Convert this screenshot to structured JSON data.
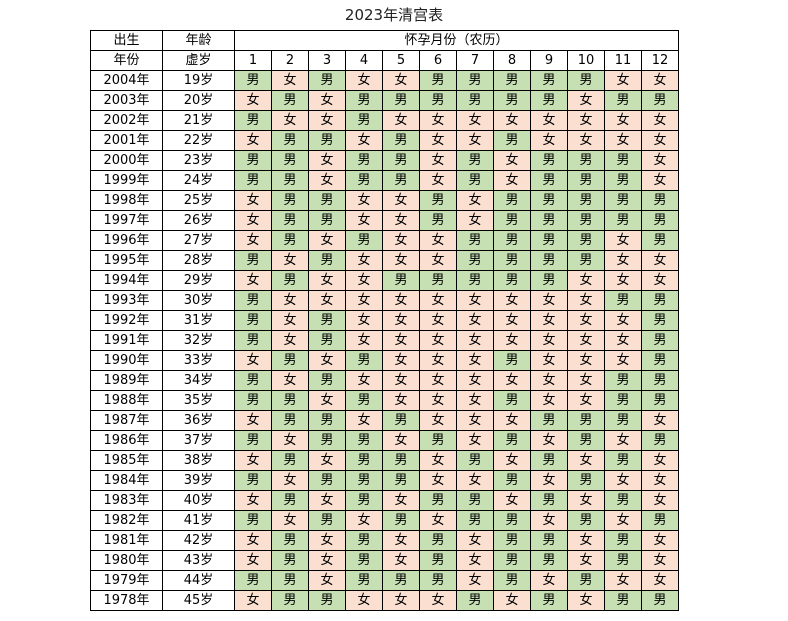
{
  "title": "2023年清宫表",
  "header": {
    "birth_top": "出生",
    "birth_bottom": "年份",
    "age_top": "年龄",
    "age_bottom": "虚岁",
    "month_group": "怀孕月份（农历）",
    "months": [
      "1",
      "2",
      "3",
      "4",
      "5",
      "6",
      "7",
      "8",
      "9",
      "10",
      "11",
      "12"
    ]
  },
  "colors": {
    "male": "#c6e0b4",
    "female": "#fbe0d2"
  },
  "rows": [
    {
      "year": "2004年",
      "age": "19岁",
      "cells": [
        "男",
        "女",
        "男",
        "女",
        "女",
        "男",
        "男",
        "男",
        "男",
        "男",
        "女",
        "女"
      ]
    },
    {
      "year": "2003年",
      "age": "20岁",
      "cells": [
        "女",
        "男",
        "女",
        "男",
        "男",
        "男",
        "男",
        "男",
        "男",
        "女",
        "男",
        "男"
      ]
    },
    {
      "year": "2002年",
      "age": "21岁",
      "cells": [
        "男",
        "女",
        "女",
        "男",
        "女",
        "女",
        "女",
        "女",
        "女",
        "女",
        "女",
        "女"
      ]
    },
    {
      "year": "2001年",
      "age": "22岁",
      "cells": [
        "女",
        "男",
        "男",
        "女",
        "男",
        "女",
        "女",
        "男",
        "女",
        "女",
        "女",
        "女"
      ]
    },
    {
      "year": "2000年",
      "age": "23岁",
      "cells": [
        "男",
        "男",
        "女",
        "男",
        "男",
        "女",
        "男",
        "女",
        "男",
        "男",
        "男",
        "女"
      ]
    },
    {
      "year": "1999年",
      "age": "24岁",
      "cells": [
        "男",
        "男",
        "女",
        "男",
        "男",
        "女",
        "男",
        "女",
        "男",
        "男",
        "男",
        "女"
      ]
    },
    {
      "year": "1998年",
      "age": "25岁",
      "cells": [
        "女",
        "男",
        "男",
        "女",
        "女",
        "男",
        "女",
        "男",
        "男",
        "男",
        "男",
        "男"
      ]
    },
    {
      "year": "1997年",
      "age": "26岁",
      "cells": [
        "女",
        "男",
        "男",
        "女",
        "女",
        "男",
        "女",
        "男",
        "男",
        "男",
        "男",
        "男"
      ]
    },
    {
      "year": "1996年",
      "age": "27岁",
      "cells": [
        "女",
        "男",
        "女",
        "男",
        "女",
        "女",
        "男",
        "男",
        "男",
        "男",
        "女",
        "男"
      ]
    },
    {
      "year": "1995年",
      "age": "28岁",
      "cells": [
        "男",
        "女",
        "男",
        "女",
        "女",
        "女",
        "男",
        "男",
        "男",
        "男",
        "女",
        "女"
      ]
    },
    {
      "year": "1994年",
      "age": "29岁",
      "cells": [
        "女",
        "男",
        "女",
        "女",
        "男",
        "男",
        "男",
        "男",
        "男",
        "女",
        "女",
        "女"
      ]
    },
    {
      "year": "1993年",
      "age": "30岁",
      "cells": [
        "男",
        "女",
        "女",
        "女",
        "女",
        "女",
        "女",
        "女",
        "女",
        "女",
        "男",
        "男"
      ]
    },
    {
      "year": "1992年",
      "age": "31岁",
      "cells": [
        "男",
        "女",
        "男",
        "女",
        "女",
        "女",
        "女",
        "女",
        "女",
        "女",
        "女",
        "男"
      ]
    },
    {
      "year": "1991年",
      "age": "32岁",
      "cells": [
        "男",
        "女",
        "男",
        "女",
        "女",
        "女",
        "女",
        "女",
        "女",
        "女",
        "女",
        "男"
      ]
    },
    {
      "year": "1990年",
      "age": "33岁",
      "cells": [
        "女",
        "男",
        "女",
        "男",
        "女",
        "女",
        "女",
        "男",
        "女",
        "女",
        "女",
        "男"
      ]
    },
    {
      "year": "1989年",
      "age": "34岁",
      "cells": [
        "男",
        "女",
        "男",
        "女",
        "女",
        "女",
        "女",
        "女",
        "女",
        "女",
        "男",
        "男"
      ]
    },
    {
      "year": "1988年",
      "age": "35岁",
      "cells": [
        "男",
        "男",
        "女",
        "男",
        "女",
        "女",
        "女",
        "男",
        "女",
        "女",
        "男",
        "男"
      ]
    },
    {
      "year": "1987年",
      "age": "36岁",
      "cells": [
        "女",
        "男",
        "男",
        "女",
        "男",
        "女",
        "女",
        "女",
        "男",
        "男",
        "男",
        "女"
      ]
    },
    {
      "year": "1986年",
      "age": "37岁",
      "cells": [
        "男",
        "女",
        "男",
        "男",
        "女",
        "男",
        "女",
        "男",
        "女",
        "男",
        "女",
        "男"
      ]
    },
    {
      "year": "1985年",
      "age": "38岁",
      "cells": [
        "女",
        "男",
        "女",
        "男",
        "男",
        "女",
        "男",
        "女",
        "男",
        "女",
        "男",
        "女"
      ]
    },
    {
      "year": "1984年",
      "age": "39岁",
      "cells": [
        "男",
        "女",
        "男",
        "男",
        "男",
        "女",
        "女",
        "男",
        "女",
        "男",
        "女",
        "女"
      ]
    },
    {
      "year": "1983年",
      "age": "40岁",
      "cells": [
        "女",
        "男",
        "女",
        "男",
        "女",
        "男",
        "男",
        "女",
        "男",
        "女",
        "男",
        "女"
      ]
    },
    {
      "year": "1982年",
      "age": "41岁",
      "cells": [
        "男",
        "女",
        "男",
        "女",
        "男",
        "女",
        "男",
        "男",
        "女",
        "男",
        "女",
        "男"
      ]
    },
    {
      "year": "1981年",
      "age": "42岁",
      "cells": [
        "女",
        "男",
        "女",
        "男",
        "女",
        "男",
        "女",
        "男",
        "男",
        "女",
        "男",
        "女"
      ]
    },
    {
      "year": "1980年",
      "age": "43岁",
      "cells": [
        "女",
        "男",
        "女",
        "男",
        "女",
        "男",
        "女",
        "男",
        "男",
        "女",
        "男",
        "女"
      ]
    },
    {
      "year": "1979年",
      "age": "44岁",
      "cells": [
        "男",
        "男",
        "女",
        "男",
        "男",
        "男",
        "女",
        "男",
        "女",
        "男",
        "女",
        "女"
      ]
    },
    {
      "year": "1978年",
      "age": "45岁",
      "cells": [
        "女",
        "男",
        "男",
        "女",
        "女",
        "女",
        "男",
        "女",
        "男",
        "女",
        "男",
        "男"
      ]
    }
  ]
}
